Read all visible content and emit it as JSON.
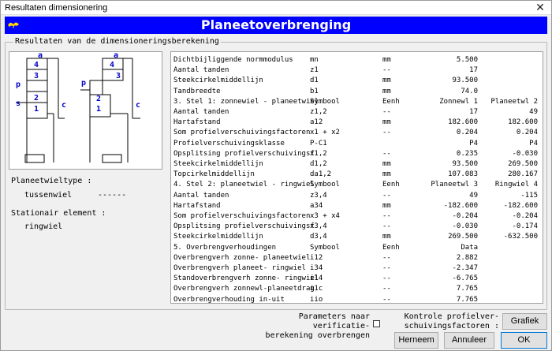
{
  "window": {
    "title": "Resultaten dimensionering",
    "close_glyph": "✕"
  },
  "banner": {
    "title": "Planeetoverbrenging",
    "logo_icon": "bird-logo-icon",
    "color": "#0000ff"
  },
  "group": {
    "legend": "Resultaten van de dimensioneringsberekening"
  },
  "diagram": {
    "labels": {
      "a": "a",
      "p": "p",
      "s": "s",
      "c": "c",
      "n4": "4",
      "n3": "3",
      "n2": "2",
      "n1": "1"
    },
    "accent": "#0000c8"
  },
  "info": {
    "planeetwieltype_label": "Planeetwieltype :",
    "planeetwieltype_value": "tussenwiel",
    "planeetwieltype_dashes": "------",
    "stationair_label": "Stationair element :",
    "stationair_value": "ringwiel"
  },
  "table": {
    "rows": [
      [
        "Dichtbijliggende normmodulus",
        "mn",
        "mm",
        "5.500",
        ""
      ],
      [
        "Aantal tanden",
        "z1",
        "--",
        "17",
        ""
      ],
      [
        "Steekcirkelmiddellijn",
        "d1",
        "mm",
        "93.500",
        ""
      ],
      [
        "Tandbreedte",
        "b1",
        "mm",
        "74.0",
        ""
      ],
      [
        "3. Stel 1: zonnewiel - planeetwiel",
        "Symbool",
        "Eenh",
        "Zonnewl 1",
        "Planeetwl 2"
      ],
      [
        "Aantal tanden",
        "z1,2",
        "--",
        "17",
        "49"
      ],
      [
        "Hartafstand",
        "a12",
        "mm",
        "182.600",
        "182.600"
      ],
      [
        "Som profielverschuivingsfactoren",
        "x1 + x2",
        "--",
        "0.204",
        "0.204"
      ],
      [
        "Profielverschuivingsklasse",
        "P-C1",
        "",
        "P4",
        "P4"
      ],
      [
        "Opsplitsing profielverschuivingsf",
        "x1,2",
        "--",
        "0.235",
        "-0.030"
      ],
      [
        "Steekcirkelmiddellijn",
        "d1,2",
        "mm",
        "93.500",
        "269.500"
      ],
      [
        "Topcirkelmiddellijn",
        "da1,2",
        "mm",
        "107.083",
        "280.167"
      ],
      [
        "4. Stel 2: planeetwiel - ringwiel",
        "Symbool",
        "Eenh",
        "Planeetwl 3",
        "Ringwiel 4"
      ],
      [
        "Aantal tanden",
        "z3,4",
        "--",
        "49",
        "-115"
      ],
      [
        "Hartafstand",
        "a34",
        "mm",
        "-182.600",
        "-182.600"
      ],
      [
        "Som profielverschuivingsfactoren",
        "x3 + x4",
        "--",
        "-0.204",
        "-0.204"
      ],
      [
        "Opsplitsing profielverschuivingsf",
        "x3,4",
        "--",
        "-0.030",
        "-0.174"
      ],
      [
        "Steekcirkelmiddellijn",
        "d3,4",
        "mm",
        "269.500",
        "-632.500"
      ],
      [
        "5. Overbrengverhoudingen",
        "Symbool",
        "Eenh",
        "Data",
        ""
      ],
      [
        "Overbrengverh zonne- planeetwiel",
        "i12",
        "--",
        "2.882",
        ""
      ],
      [
        "Overbrengverh planeet- ringwiel",
        "i34",
        "--",
        "-2.347",
        ""
      ],
      [
        "Standoverbrengverh zonne- ringwiel",
        "i14",
        "--",
        "-6.765",
        ""
      ],
      [
        "Overbrengverh zonnewl-planeetdrag",
        "i1c",
        "--",
        "7.765",
        ""
      ],
      [
        "Overbrengverhouding in-uit",
        "iio",
        "--",
        "7.765",
        ""
      ]
    ]
  },
  "footer": {
    "param_line1": "Parameters naar verificatie-",
    "param_line2": "berekening overbrengen",
    "kontrole_line1": "Kontrole profielver-",
    "kontrole_line2": "schuivingsfactoren :",
    "grafiek": "Grafiek",
    "herneem": "Herneem",
    "annuleer": "Annuleer",
    "ok": "OK"
  }
}
